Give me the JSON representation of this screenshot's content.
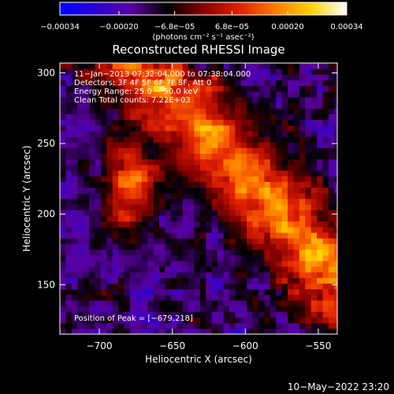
{
  "colorbar": {
    "ticks": [
      {
        "value": -0.00034,
        "label": "−0.00034"
      },
      {
        "value": -0.0002,
        "label": "−0.00020"
      },
      {
        "value": -6.8e-05,
        "label": "−6.8e−05"
      },
      {
        "value": 6.8e-05,
        "label": "6.8e−05"
      },
      {
        "value": 0.0002,
        "label": "0.00020"
      },
      {
        "value": 0.00034,
        "label": "0.00034"
      }
    ],
    "range": [
      -0.00034,
      0.00034
    ],
    "units": "(photons cm⁻² s⁻¹ asec⁻²)",
    "stops": [
      "#0000ff",
      "#2a00d4",
      "#5a00a0",
      "#000000",
      "#8a0000",
      "#e02000",
      "#ff7a00",
      "#ffd200",
      "#ffffff"
    ]
  },
  "chart_data": {
    "type": "heatmap",
    "title": "Reconstructed RHESSI Image",
    "xlabel": "Heliocentric X (arcsec)",
    "ylabel": "Heliocentric Y (arcsec)",
    "xlim": [
      -727,
      -537
    ],
    "ylim": [
      115,
      307
    ],
    "xticks": [
      {
        "value": -700,
        "label": "−700"
      },
      {
        "value": -650,
        "label": "−650"
      },
      {
        "value": -600,
        "label": "−600"
      },
      {
        "value": -550,
        "label": "−550"
      }
    ],
    "yticks": [
      {
        "value": 150,
        "label": "150"
      },
      {
        "value": 200,
        "label": "200"
      },
      {
        "value": 250,
        "label": "250"
      },
      {
        "value": 300,
        "label": "300"
      }
    ],
    "annotations": [
      "11−Jan−2013 07:32:04.000 to 07:38:04.000",
      "Detectors: 3F 4F 5F 6F 7F 8F, Att 0",
      "Energy Range: 25.0 − 50.0 keV",
      "Clean     Total counts: 7.22E+03"
    ],
    "peak_label": "Position of Peak = [−679,218]",
    "peak": [
      -679,
      218
    ],
    "pixel_size_arcsec": 4
  },
  "footer": {
    "date": "10−May−2022 23:20"
  }
}
